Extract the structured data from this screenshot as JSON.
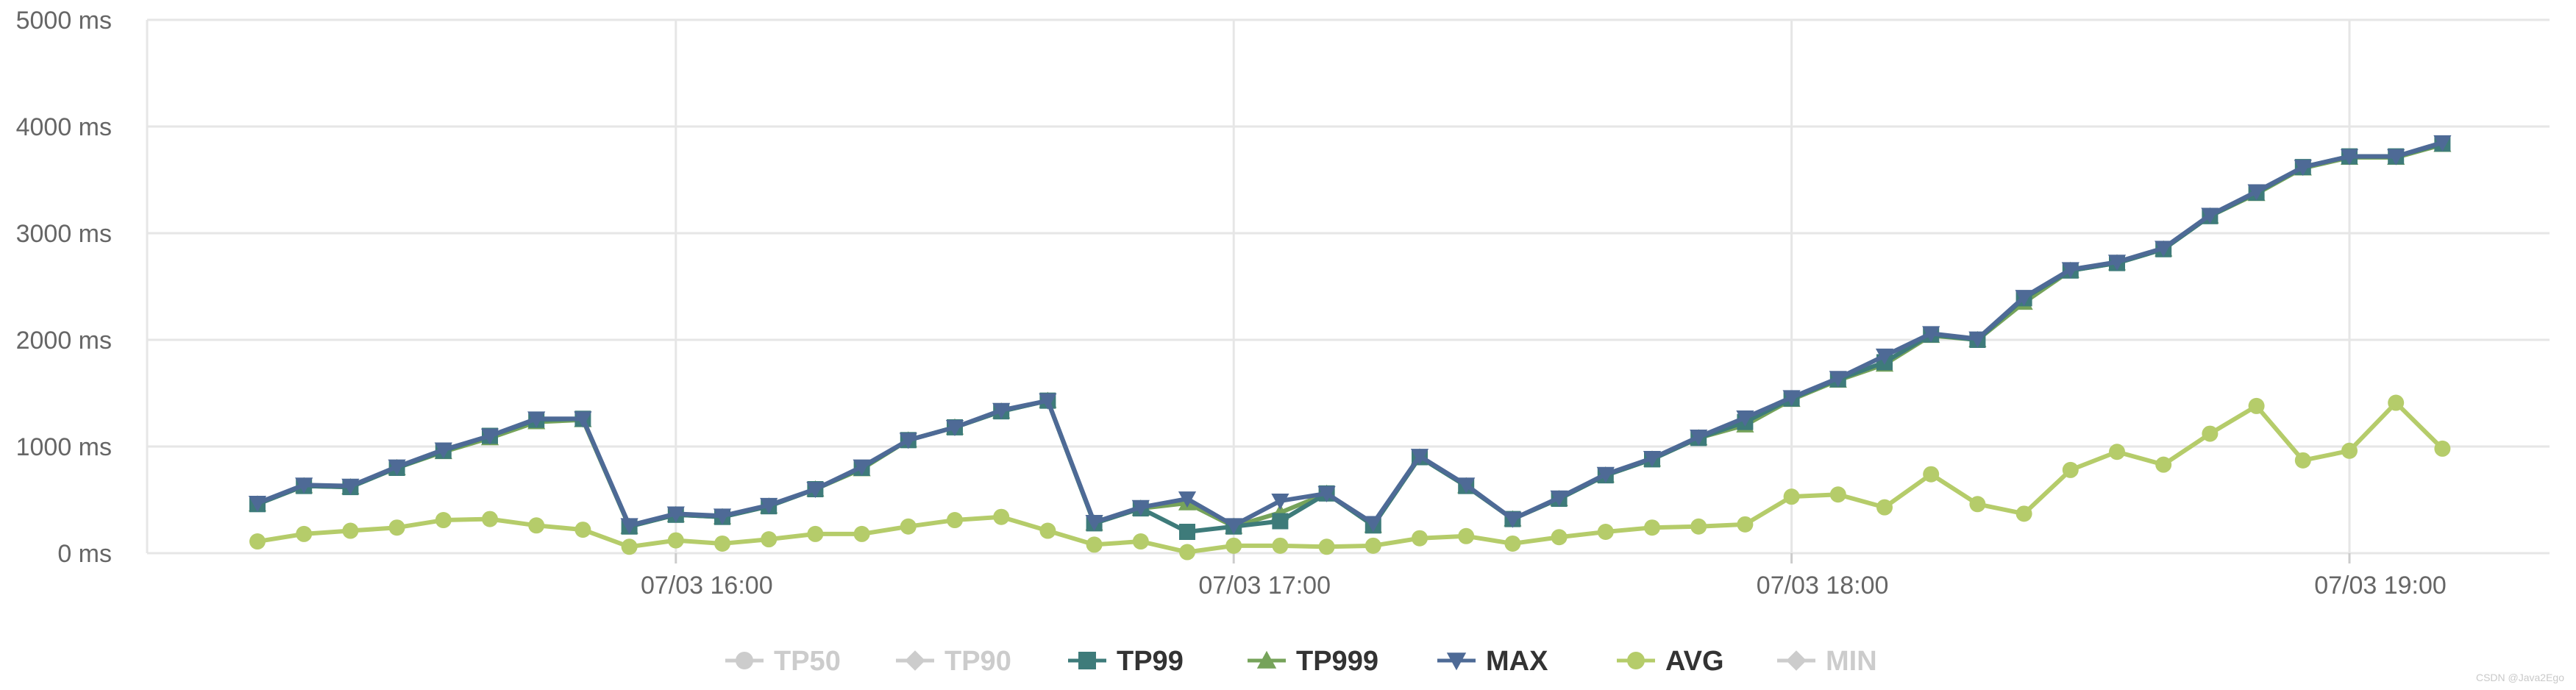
{
  "chart_data": {
    "type": "line",
    "ylim": [
      0,
      5000
    ],
    "y_ticks": [
      {
        "value": 0,
        "label": "0 ms"
      },
      {
        "value": 1000,
        "label": "1000 ms"
      },
      {
        "value": 2000,
        "label": "2000 ms"
      },
      {
        "value": 3000,
        "label": "3000 ms"
      },
      {
        "value": 4000,
        "label": "4000 ms"
      },
      {
        "value": 5000,
        "label": "5000 ms"
      }
    ],
    "x_start": "07/03 15:15",
    "x_interval_minutes": 5,
    "x_ticks": [
      {
        "index": 9,
        "label": "07/03 16:00"
      },
      {
        "index": 21,
        "label": "07/03 17:00"
      },
      {
        "index": 33,
        "label": "07/03 18:00"
      },
      {
        "index": 45,
        "label": "07/03 19:00"
      }
    ],
    "grid": true,
    "legend_position": "bottom-center",
    "legend": [
      {
        "name": "TP50",
        "marker": "circle",
        "color": "#cccccc",
        "active": false
      },
      {
        "name": "TP90",
        "marker": "diamond",
        "color": "#cccccc",
        "active": false
      },
      {
        "name": "TP99",
        "marker": "square",
        "color": "#3e7b7a",
        "active": true
      },
      {
        "name": "TP999",
        "marker": "triangle",
        "color": "#76a35a",
        "active": true
      },
      {
        "name": "MAX",
        "marker": "triangle-down",
        "color": "#4e6a96",
        "active": true
      },
      {
        "name": "AVG",
        "marker": "circle",
        "color": "#b5cc6a",
        "active": true
      },
      {
        "name": "MIN",
        "marker": "diamond",
        "color": "#cccccc",
        "active": false
      }
    ],
    "series": [
      {
        "name": "TP99",
        "color": "#3e7b7a",
        "marker": "square",
        "values": [
          460,
          630,
          620,
          800,
          960,
          1100,
          1250,
          1260,
          250,
          360,
          340,
          440,
          600,
          800,
          1060,
          1180,
          1330,
          1430,
          280,
          420,
          200,
          250,
          300,
          560,
          260,
          900,
          630,
          320,
          510,
          730,
          880,
          1080,
          1230,
          1450,
          1630,
          1790,
          2050,
          2000,
          2390,
          2650,
          2720,
          2850,
          3160,
          3380,
          3620,
          3720,
          3720,
          3840
        ]
      },
      {
        "name": "TP999",
        "color": "#76a35a",
        "marker": "triangle",
        "values": [
          460,
          630,
          620,
          800,
          950,
          1080,
          1230,
          1250,
          250,
          360,
          340,
          440,
          600,
          790,
          1060,
          1180,
          1330,
          1430,
          280,
          420,
          470,
          250,
          380,
          560,
          260,
          900,
          630,
          320,
          510,
          730,
          880,
          1080,
          1200,
          1440,
          1620,
          1770,
          2040,
          2000,
          2350,
          2650,
          2720,
          2850,
          3160,
          3370,
          3610,
          3710,
          3710,
          3830
        ]
      },
      {
        "name": "MAX",
        "color": "#4e6a96",
        "marker": "triangle-down",
        "values": [
          470,
          640,
          630,
          810,
          970,
          1100,
          1260,
          1260,
          260,
          370,
          350,
          450,
          600,
          810,
          1060,
          1180,
          1340,
          1430,
          290,
          430,
          510,
          260,
          490,
          560,
          280,
          910,
          640,
          320,
          520,
          740,
          890,
          1090,
          1270,
          1460,
          1640,
          1850,
          2060,
          2010,
          2400,
          2660,
          2730,
          2860,
          3170,
          3390,
          3620,
          3720,
          3720,
          3850
        ]
      },
      {
        "name": "AVG",
        "color": "#b5cc6a",
        "marker": "circle",
        "values": [
          110,
          180,
          210,
          240,
          310,
          320,
          260,
          220,
          60,
          120,
          90,
          130,
          180,
          180,
          250,
          310,
          340,
          210,
          80,
          110,
          10,
          70,
          70,
          60,
          70,
          140,
          160,
          90,
          150,
          200,
          240,
          250,
          270,
          530,
          550,
          430,
          740,
          460,
          370,
          780,
          950,
          830,
          1120,
          1380,
          870,
          960,
          1410,
          980
        ]
      }
    ]
  },
  "watermark": "CSDN @Java2Ego"
}
